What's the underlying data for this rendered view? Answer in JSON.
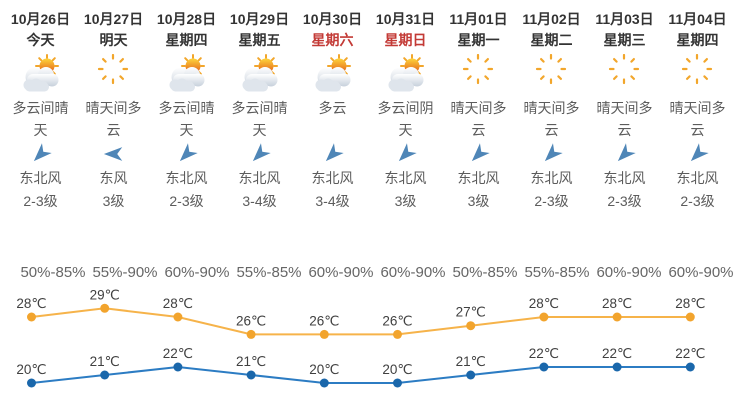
{
  "widget": {
    "background": "#ffffff",
    "accent_red": "#c33a36",
    "wind_arrow_color": "#4f86b7"
  },
  "days": [
    {
      "date": "10月26日",
      "weekday": "今天",
      "weekend": false,
      "icon": "cloud-sun",
      "desc": "多云间晴天",
      "wind_dir": "东北风",
      "wind_level": "2-3级",
      "wind_arrow_deg": 135,
      "humidity": "50%-85%",
      "high": "28",
      "low": "20"
    },
    {
      "date": "10月27日",
      "weekday": "明天",
      "weekend": false,
      "icon": "sun-cloud",
      "desc": "晴天间多云",
      "wind_dir": "东风",
      "wind_level": "3级",
      "wind_arrow_deg": 180,
      "humidity": "55%-90%",
      "high": "29",
      "low": "21"
    },
    {
      "date": "10月28日",
      "weekday": "星期四",
      "weekend": false,
      "icon": "cloud-sun",
      "desc": "多云间晴天",
      "wind_dir": "东北风",
      "wind_level": "2-3级",
      "wind_arrow_deg": 135,
      "humidity": "60%-90%",
      "high": "28",
      "low": "22"
    },
    {
      "date": "10月29日",
      "weekday": "星期五",
      "weekend": false,
      "icon": "cloud-sun",
      "desc": "多云间晴天",
      "wind_dir": "东北风",
      "wind_level": "3-4级",
      "wind_arrow_deg": 135,
      "humidity": "55%-85%",
      "high": "26",
      "low": "21"
    },
    {
      "date": "10月30日",
      "weekday": "星期六",
      "weekend": true,
      "icon": "cloud-sun",
      "desc": "多云",
      "wind_dir": "东北风",
      "wind_level": "3-4级",
      "wind_arrow_deg": 135,
      "humidity": "60%-90%",
      "high": "26",
      "low": "20"
    },
    {
      "date": "10月31日",
      "weekday": "星期日",
      "weekend": true,
      "icon": "cloud-sun",
      "desc": "多云间阴天",
      "wind_dir": "东北风",
      "wind_level": "3级",
      "wind_arrow_deg": 135,
      "humidity": "60%-90%",
      "high": "26",
      "low": "20"
    },
    {
      "date": "11月01日",
      "weekday": "星期一",
      "weekend": false,
      "icon": "sun-cloud",
      "desc": "晴天间多云",
      "wind_dir": "东北风",
      "wind_level": "3级",
      "wind_arrow_deg": 135,
      "humidity": "50%-85%",
      "high": "27",
      "low": "21"
    },
    {
      "date": "11月02日",
      "weekday": "星期二",
      "weekend": false,
      "icon": "sun-cloud",
      "desc": "晴天间多云",
      "wind_dir": "东北风",
      "wind_level": "2-3级",
      "wind_arrow_deg": 135,
      "humidity": "55%-85%",
      "high": "28",
      "low": "22"
    },
    {
      "date": "11月03日",
      "weekday": "星期三",
      "weekend": false,
      "icon": "sun-cloud",
      "desc": "晴天间多云",
      "wind_dir": "东北风",
      "wind_level": "2-3级",
      "wind_arrow_deg": 135,
      "humidity": "60%-90%",
      "high": "28",
      "low": "22"
    },
    {
      "date": "11月04日",
      "weekday": "星期四",
      "weekend": false,
      "icon": "sun-cloud",
      "desc": "晴天间多云",
      "wind_dir": "东北风",
      "wind_level": "2-3级",
      "wind_arrow_deg": 135,
      "humidity": "60%-90%",
      "high": "28",
      "low": "22"
    }
  ],
  "chart_data": {
    "type": "line",
    "unit": "℃",
    "categories": [
      "10月26日",
      "10月27日",
      "10月28日",
      "10月29日",
      "10月30日",
      "10月31日",
      "11月01日",
      "11月02日",
      "11月03日",
      "11月04日"
    ],
    "series": [
      {
        "name": "high-temperature",
        "values": [
          28,
          29,
          28,
          26,
          26,
          26,
          27,
          28,
          28,
          28
        ],
        "line_color": "#f6b34a",
        "dot_color": "#f2a42d",
        "label_color": "#404040"
      },
      {
        "name": "low-temperature",
        "values": [
          20,
          21,
          22,
          21,
          20,
          20,
          21,
          22,
          22,
          22
        ],
        "line_color": "#2c7cc3",
        "dot_color": "#1a67ab",
        "label_color": "#404040"
      }
    ],
    "humidity_row": [
      "50%-85%",
      "55%-90%",
      "60%-90%",
      "55%-85%",
      "60%-90%",
      "60%-90%",
      "50%-85%",
      "55%-85%",
      "60%-90%",
      "60%-90%"
    ],
    "grid": false,
    "legend": "none"
  }
}
